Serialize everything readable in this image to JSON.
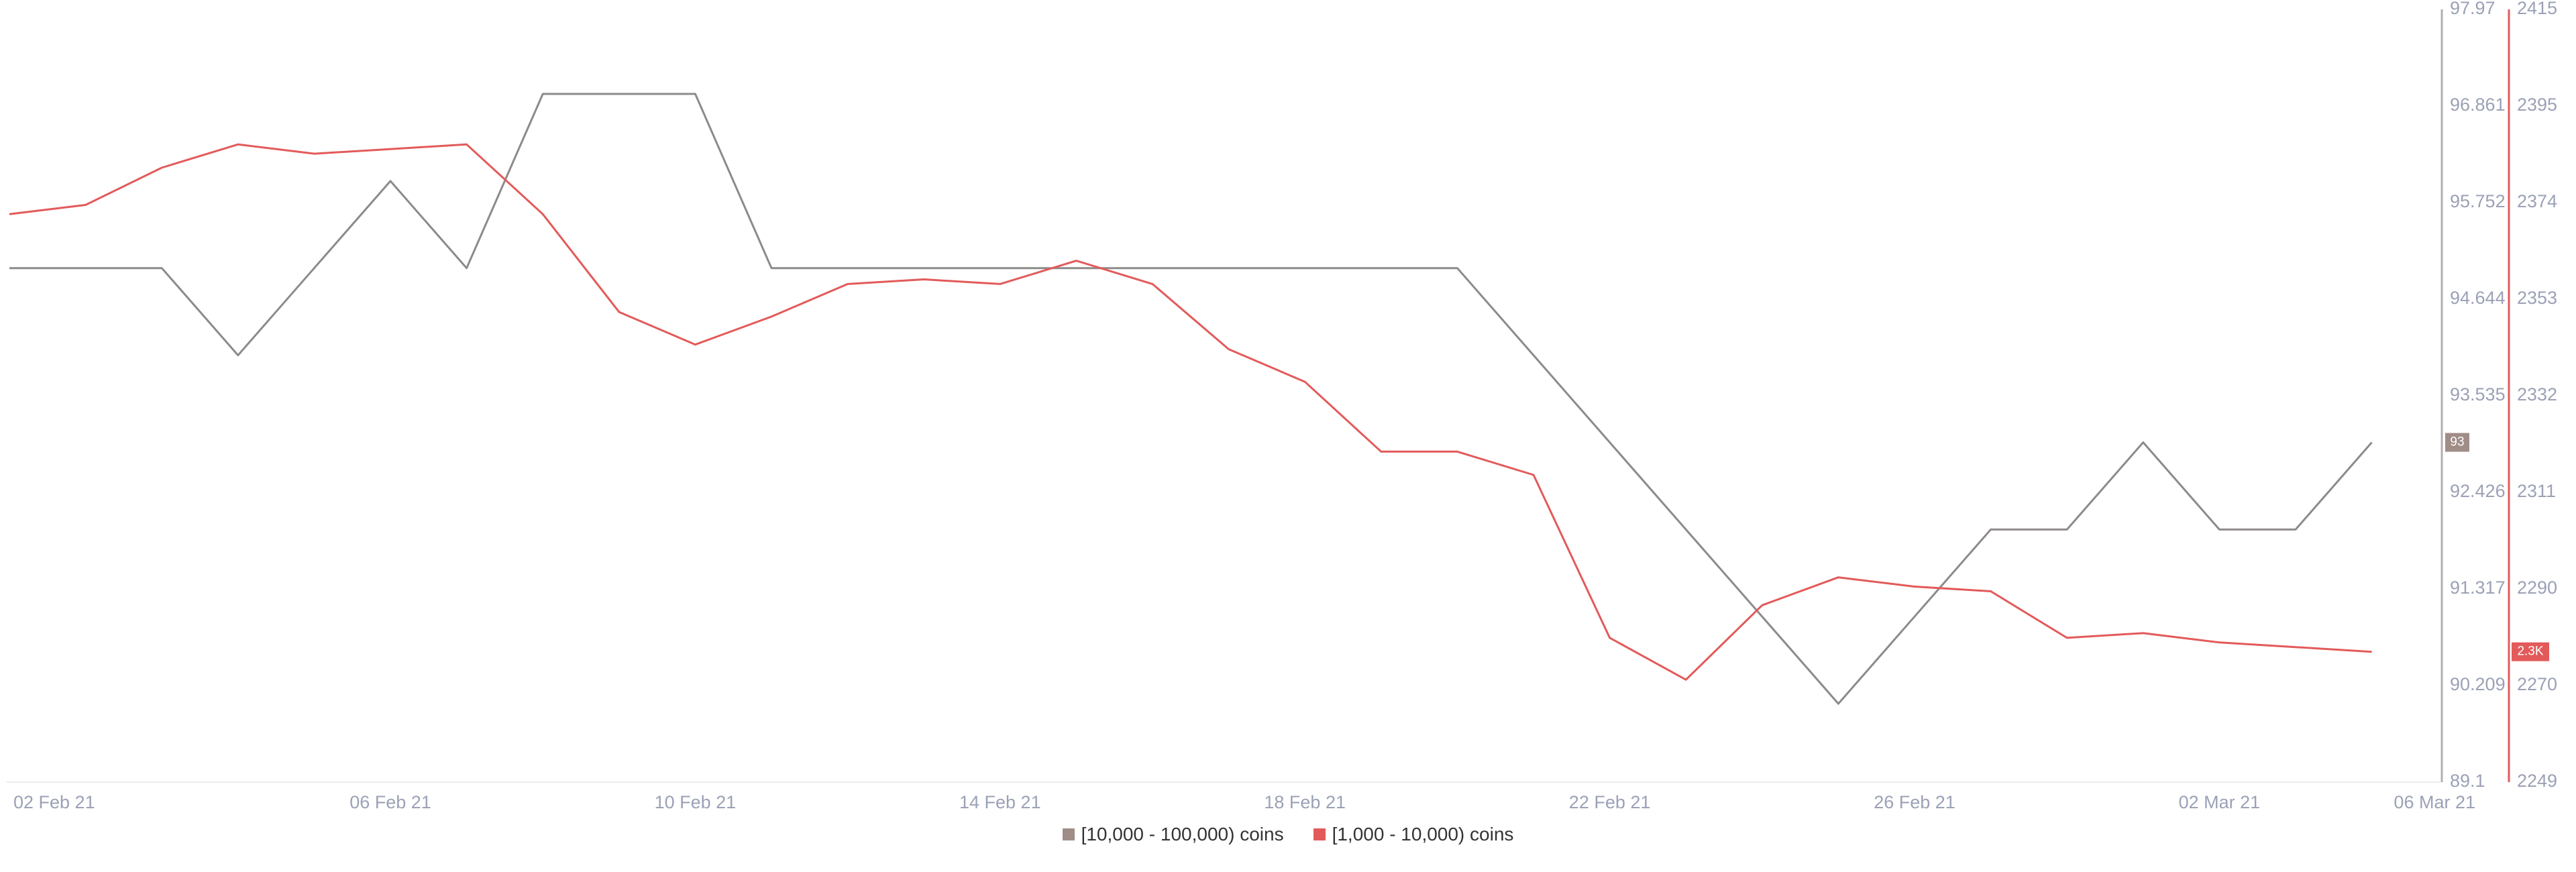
{
  "chart_data": {
    "type": "line",
    "x": [
      "01 Feb 21",
      "02 Feb 21",
      "03 Feb 21",
      "04 Feb 21",
      "05 Feb 21",
      "06 Feb 21",
      "07 Feb 21",
      "08 Feb 21",
      "09 Feb 21",
      "10 Feb 21",
      "11 Feb 21",
      "12 Feb 21",
      "13 Feb 21",
      "14 Feb 21",
      "15 Feb 21",
      "16 Feb 21",
      "17 Feb 21",
      "18 Feb 21",
      "19 Feb 21",
      "20 Feb 21",
      "21 Feb 21",
      "22 Feb 21",
      "23 Feb 21",
      "24 Feb 21",
      "25 Feb 21",
      "26 Feb 21",
      "27 Feb 21",
      "28 Feb 21",
      "01 Mar 21",
      "02 Mar 21",
      "03 Mar 21",
      "04 Mar 21"
    ],
    "x_ticks": [
      "02 Feb 21",
      "06 Feb 21",
      "10 Feb 21",
      "14 Feb 21",
      "18 Feb 21",
      "22 Feb 21",
      "26 Feb 21",
      "02 Mar 21",
      "06 Mar 21"
    ],
    "series": [
      {
        "name": "[10,000 - 100,000) coins",
        "axis": "left",
        "color": "#8e8a8a",
        "values": [
          95,
          95,
          95,
          94,
          95,
          96,
          95,
          97,
          97,
          97,
          95,
          95,
          95,
          95,
          95,
          95,
          95,
          95,
          95,
          95,
          94,
          93,
          92,
          91,
          90,
          91,
          92,
          92,
          93,
          92,
          92,
          93
        ]
      },
      {
        "name": "[1,000 - 10,000) coins",
        "axis": "right",
        "color": "#e35a5a",
        "values": [
          2371,
          2373,
          2381,
          2386,
          2384,
          2385,
          2386,
          2371,
          2350,
          2343,
          2349,
          2356,
          2357,
          2356,
          2361,
          2356,
          2342,
          2335,
          2320,
          2320,
          2315,
          2280,
          2271,
          2287,
          2293,
          2291,
          2290,
          2280,
          2281,
          2279,
          2278,
          2277
        ]
      }
    ],
    "y_left": {
      "ticks": [
        "97.97",
        "96.861",
        "95.752",
        "94.644",
        "93.535",
        "92.426",
        "91.317",
        "90.209",
        "89.1"
      ],
      "ylim": [
        89.1,
        97.97
      ],
      "current_label": "93",
      "current_value": 93,
      "color": "#8e8a8a"
    },
    "y_right": {
      "ticks": [
        "2415",
        "2395",
        "2374",
        "2353",
        "2332",
        "2311",
        "2290",
        "2270",
        "2249"
      ],
      "ylim": [
        2249,
        2415
      ],
      "current_label": "2.3K",
      "current_value": 2277,
      "color": "#e35a5a"
    },
    "grid": false,
    "legend_position": "bottom-center"
  }
}
